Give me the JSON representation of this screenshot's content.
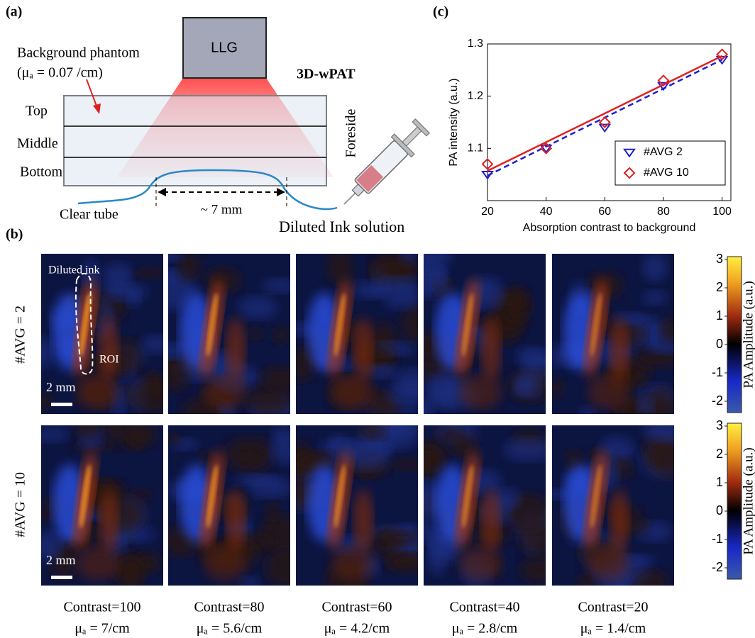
{
  "panel_labels": [
    "(a)",
    "(b)",
    "(c)"
  ],
  "diagram": {
    "source": "LLG",
    "phantom_label": "Background phantom",
    "phantom_mu": "(μₐ = 0.07 /cm)",
    "system": "3D-wPAT",
    "layers": [
      "Top",
      "Middle",
      "Bottom"
    ],
    "side": "Foreside",
    "tube": "Clear tube",
    "length": "~ 7 mm",
    "solution": "Diluted Ink solution"
  },
  "images": {
    "rows": [
      "#AVG = 2",
      "#AVG = 10"
    ],
    "columns": [
      {
        "contrast": "Contrast=100",
        "mu": "μₐ = 7/cm"
      },
      {
        "contrast": "Contrast=80",
        "mu": "μₐ = 5.6/cm"
      },
      {
        "contrast": "Contrast=60",
        "mu": "μₐ = 4.2/cm"
      },
      {
        "contrast": "Contrast=40",
        "mu": "μₐ = 2.8/cm"
      },
      {
        "contrast": "Contrast=20",
        "mu": "μₐ = 1.4/cm"
      }
    ],
    "annotations": {
      "ink": "Diluted ink",
      "roi": "ROI",
      "scale": "2 mm"
    },
    "colorbar": {
      "label": "PA Amplitude (a.u.)",
      "range": [
        -2.4,
        3.1
      ],
      "ticks": [
        3,
        2,
        1,
        0,
        -1,
        -2
      ]
    }
  },
  "chart_data": {
    "type": "scatter",
    "ylabel": "PA intensity (a.u.)",
    "xlabel": "Absorption contrast to background",
    "x": [
      20,
      40,
      60,
      80,
      100
    ],
    "xlim": [
      20,
      103
    ],
    "xticks": [
      20,
      40,
      60,
      80,
      100
    ],
    "ylim": [
      1.0,
      1.3
    ],
    "yticks": [
      1.1,
      1.2,
      1.3
    ],
    "fit_x": [
      20,
      100
    ],
    "legend": "lower right",
    "series": [
      {
        "name": "#AVG 2",
        "color": "#1f1fd0",
        "marker": "triangle-down",
        "line_style": "dashed",
        "values": [
          1.05,
          1.1,
          1.14,
          1.22,
          1.27
        ],
        "fit": [
          1.048,
          1.27
        ]
      },
      {
        "name": "#AVG 10",
        "color": "#e02020",
        "marker": "diamond",
        "line_style": "solid",
        "values": [
          1.07,
          1.1,
          1.15,
          1.23,
          1.28
        ],
        "fit": [
          1.057,
          1.277
        ]
      }
    ]
  }
}
